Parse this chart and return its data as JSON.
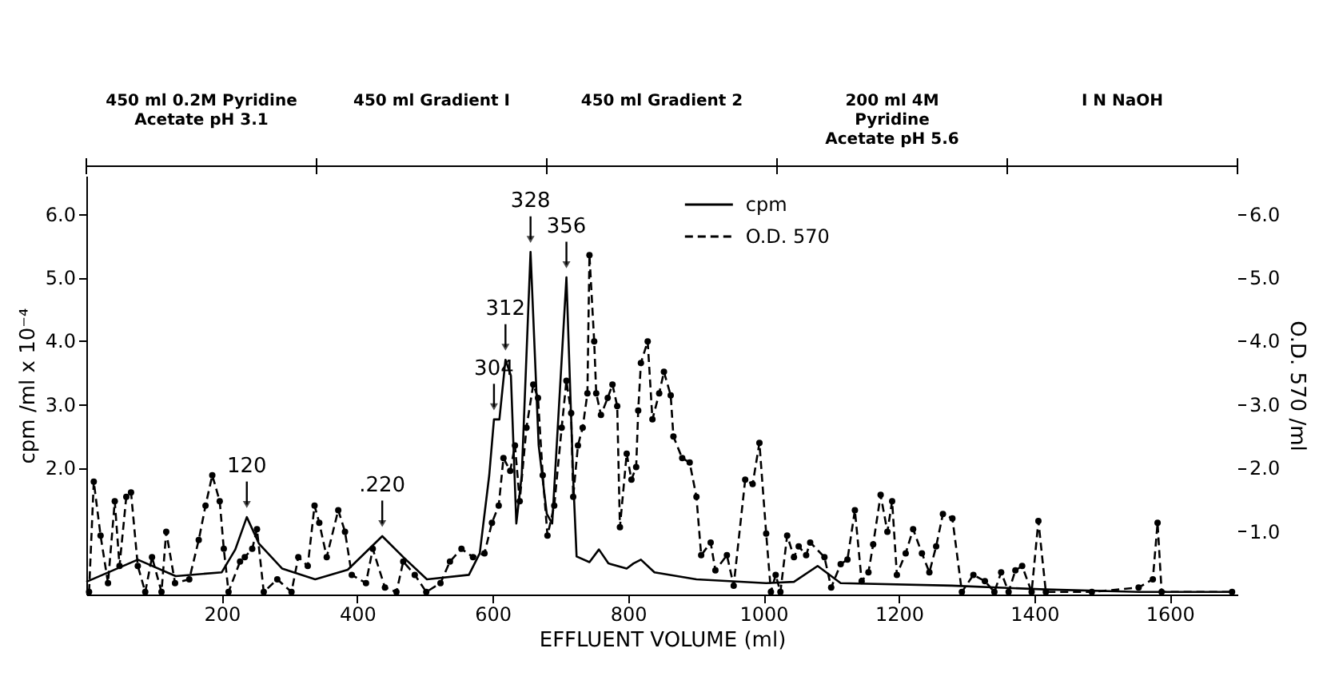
{
  "chart_data": {
    "type": "line",
    "xlabel": "EFFLUENT VOLUME (ml)",
    "ylabel": "cpm /ml x 10⁻⁴",
    "y2label": "O.D. 570 /ml",
    "xlim": [
      0,
      1700
    ],
    "xticks": [
      200,
      400,
      600,
      800,
      1000,
      1200,
      1400,
      1600
    ],
    "ylim": [
      0,
      6.6
    ],
    "yticks": [
      {
        "value": 2,
        "label": "2.0"
      },
      {
        "value": 3,
        "label": "3.0"
      },
      {
        "value": 4,
        "label": "4.0"
      },
      {
        "value": 5,
        "label": "5.0"
      },
      {
        "value": 6,
        "label": "6.0"
      }
    ],
    "y2lim": [
      0,
      6.6
    ],
    "y2ticks": [
      {
        "value": 1,
        "label": "1.0"
      },
      {
        "value": 2,
        "label": "2.0"
      },
      {
        "value": 3,
        "label": "3.0"
      },
      {
        "value": 4,
        "label": "4.0"
      },
      {
        "value": 5,
        "label": "5.0"
      },
      {
        "value": 6,
        "label": "6.0"
      }
    ],
    "grid": false,
    "legend": "top",
    "series": [
      {
        "name": "cpm",
        "color": "#000000",
        "line_style": "solid",
        "marker": "none",
        "x": [
          0,
          76,
          132,
          200,
          220,
          237,
          255,
          289,
          338,
          386,
          437,
          468,
          503,
          565,
          581,
          595,
          602,
          610,
          619,
          627,
          635,
          643,
          656,
          668,
          680,
          688,
          709,
          719,
          724,
          743,
          757,
          771,
          798,
          808,
          819,
          839,
          901,
          1004,
          1045,
          1080,
          1114,
          1278,
          1416,
          1555,
          1588,
          1690
        ],
        "values": [
          0.2,
          0.55,
          0.29,
          0.35,
          0.71,
          1.22,
          0.8,
          0.41,
          0.24,
          0.39,
          0.92,
          0.59,
          0.24,
          0.31,
          0.65,
          1.88,
          2.76,
          2.76,
          3.7,
          3.45,
          1.12,
          1.88,
          5.4,
          2.35,
          1.27,
          1.12,
          5.0,
          1.82,
          0.6,
          0.51,
          0.71,
          0.49,
          0.41,
          0.49,
          0.55,
          0.35,
          0.24,
          0.18,
          0.2,
          0.45,
          0.18,
          0.14,
          0.08,
          0.04,
          0.04,
          0.04
        ]
      },
      {
        "name": "O.D. 570",
        "color": "#000000",
        "line_style": "dashed",
        "marker": "circle",
        "axis": "y2",
        "x": [
          4,
          11,
          21,
          32,
          42,
          49,
          59,
          66,
          76,
          87,
          97,
          111,
          118,
          131,
          152,
          166,
          176,
          186,
          197,
          203,
          210,
          227,
          234,
          245,
          252,
          262,
          282,
          303,
          313,
          327,
          337,
          344,
          355,
          372,
          382,
          392,
          413,
          423,
          441,
          458,
          468,
          485,
          502,
          523,
          537,
          554,
          571,
          588,
          599,
          609,
          616,
          626,
          633,
          640,
          650,
          660,
          667,
          674,
          681,
          691,
          702,
          709,
          716,
          719,
          726,
          733,
          740,
          743,
          750,
          753,
          760,
          770,
          777,
          784,
          788,
          798,
          805,
          812,
          815,
          819,
          829,
          836,
          846,
          853,
          863,
          867,
          880,
          891,
          901,
          908,
          922,
          929,
          946,
          956,
          973,
          984,
          994,
          1004,
          1011,
          1018,
          1025,
          1035,
          1045,
          1052,
          1063,
          1069,
          1090,
          1100,
          1114,
          1124,
          1135,
          1145,
          1155,
          1162,
          1173,
          1183,
          1190,
          1197,
          1210,
          1221,
          1234,
          1245,
          1255,
          1265,
          1279,
          1293,
          1310,
          1327,
          1341,
          1351,
          1362,
          1372,
          1382,
          1396,
          1406,
          1417,
          1485,
          1554,
          1575,
          1582,
          1588,
          1692
        ],
        "values": [
          0.04,
          1.78,
          0.93,
          0.18,
          1.47,
          0.45,
          1.54,
          1.61,
          0.45,
          0.04,
          0.59,
          0.04,
          0.99,
          0.18,
          0.24,
          0.86,
          1.4,
          1.88,
          1.47,
          0.72,
          0.04,
          0.52,
          0.59,
          0.72,
          1.03,
          0.04,
          0.24,
          0.04,
          0.59,
          0.45,
          1.4,
          1.13,
          0.59,
          1.33,
          0.99,
          0.31,
          0.18,
          0.72,
          0.11,
          0.04,
          0.52,
          0.31,
          0.04,
          0.18,
          0.52,
          0.72,
          0.59,
          0.65,
          1.13,
          1.4,
          2.15,
          1.95,
          2.35,
          1.47,
          2.63,
          3.31,
          3.1,
          1.88,
          0.93,
          1.4,
          2.63,
          3.37,
          2.86,
          1.54,
          2.35,
          2.63,
          3.17,
          5.35,
          3.99,
          3.17,
          2.83,
          3.1,
          3.31,
          2.97,
          1.06,
          2.22,
          1.81,
          2.01,
          2.9,
          3.65,
          3.99,
          2.76,
          3.17,
          3.51,
          3.14,
          2.49,
          2.15,
          2.08,
          1.54,
          0.62,
          0.82,
          0.38,
          0.62,
          0.14,
          1.81,
          1.74,
          2.39,
          0.96,
          0.04,
          0.31,
          0.04,
          0.93,
          0.59,
          0.76,
          0.62,
          0.82,
          0.59,
          0.11,
          0.48,
          0.55,
          1.33,
          0.21,
          0.35,
          0.79,
          1.57,
          0.99,
          1.47,
          0.31,
          0.65,
          1.03,
          0.65,
          0.35,
          0.76,
          1.27,
          1.2,
          0.04,
          0.31,
          0.21,
          0.04,
          0.35,
          0.04,
          0.38,
          0.45,
          0.04,
          1.16,
          0.04,
          0.04,
          0.11,
          0.24,
          1.13,
          0.04,
          0.04
        ]
      }
    ],
    "annotations": [
      {
        "text": "120",
        "x": 237,
        "y": 1.22
      },
      {
        "text": ".220",
        "x": 437,
        "y": 0.92
      },
      {
        "text": "304",
        "x": 602,
        "y": 2.76
      },
      {
        "text": "312",
        "x": 619,
        "y": 3.7
      },
      {
        "text": "328",
        "x": 656,
        "y": 5.4
      },
      {
        "text": "356",
        "x": 709,
        "y": 5.0
      },
      "450 ml 0.2M Pyridine\nAcetate pH 3.1",
      "450 ml Gradient I",
      "450 ml Gradient 2",
      "200 ml 4M\nPyridine\nAcetate pH 5.6",
      "I N NaOH"
    ]
  }
}
